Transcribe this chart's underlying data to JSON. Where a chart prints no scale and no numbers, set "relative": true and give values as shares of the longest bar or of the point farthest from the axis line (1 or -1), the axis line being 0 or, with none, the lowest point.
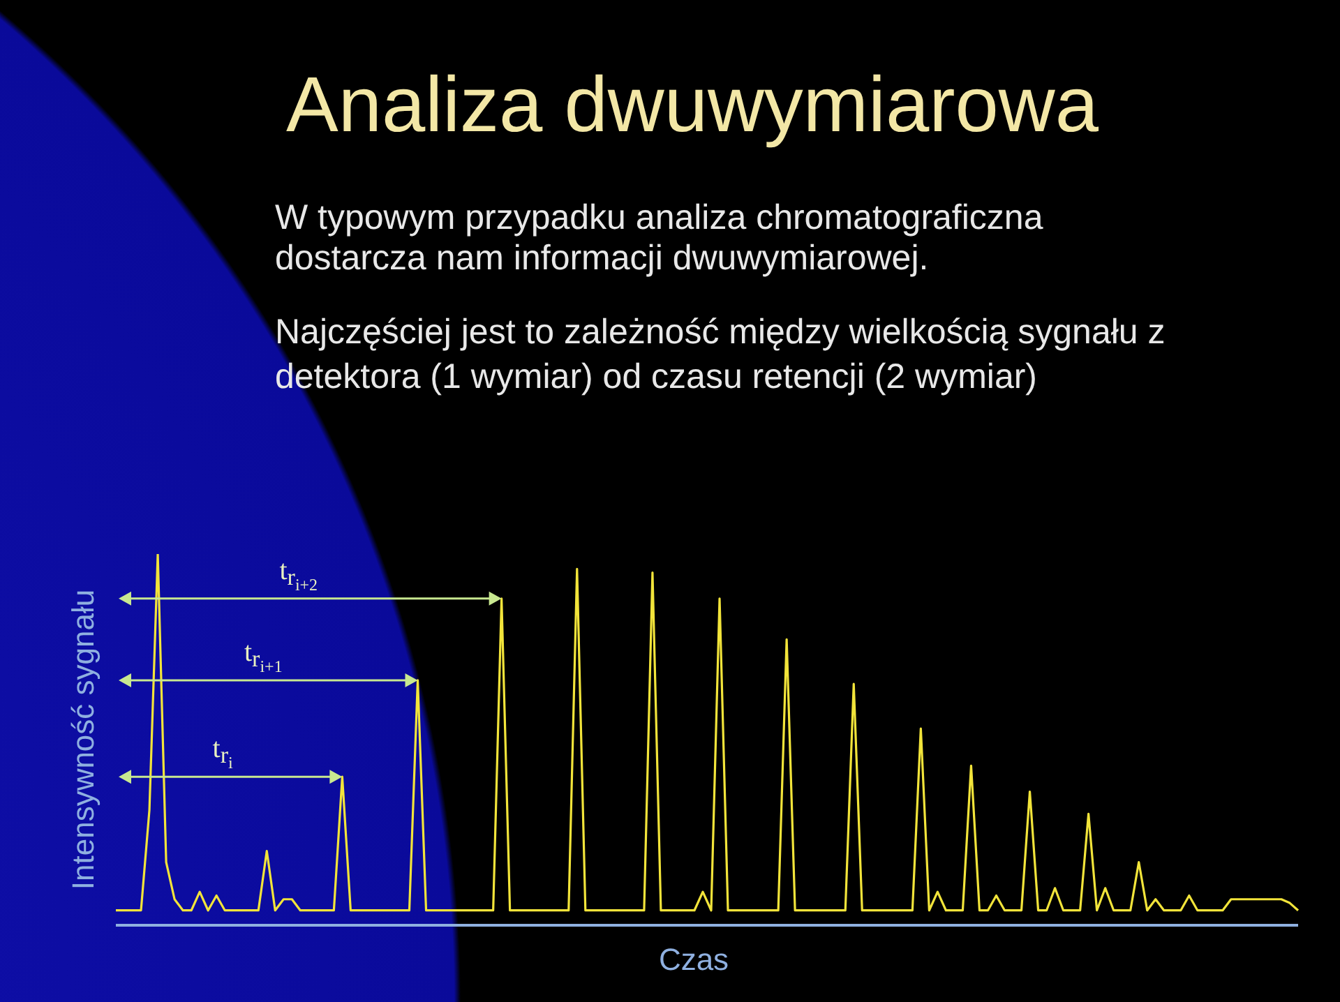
{
  "chart_data": {
    "type": "line",
    "title": "Analiza dwuwymiarowa",
    "subtitle": "W typowym przypadku analiza chromatograficzna dostarcza nam informacji dwuwymiarowej.",
    "xlabel": "Czas",
    "ylabel": "Intensywność sygnału",
    "relative": true,
    "annotations": [
      "Najczęściej jest to zależność między wielkością sygnału z detektora (1 wymiar) od czasu retencji (2 wymiar)",
      "t$_{r}$$_{i}$",
      "t$_{r}$$_{i+1}$",
      "t$_{r}$$_{i+2}$"
    ],
    "categories": [
      null,
      null,
      null,
      null,
      null,
      null,
      null,
      null,
      null,
      null,
      null,
      null,
      null,
      null,
      null,
      null,
      null,
      null,
      null,
      null,
      null,
      null,
      null,
      null,
      null,
      null,
      null,
      null,
      null,
      null,
      null,
      null,
      null,
      null,
      null,
      null,
      null,
      null,
      null,
      null,
      null,
      null,
      null,
      null,
      null,
      null,
      null,
      null,
      null,
      null,
      null,
      null,
      null,
      null,
      null,
      null,
      null,
      null,
      null,
      null,
      null,
      null,
      null,
      null,
      null,
      null,
      null,
      null,
      null,
      null,
      null,
      null,
      null,
      null,
      null,
      null,
      null,
      null,
      null,
      null,
      null,
      null,
      null,
      null,
      null,
      null,
      null,
      null,
      null,
      null,
      null,
      null,
      null,
      null,
      null,
      null,
      null,
      null,
      null,
      null,
      null,
      null,
      null,
      null,
      null,
      null,
      null,
      null,
      null,
      null,
      null,
      null,
      null,
      null,
      null,
      null,
      null,
      null,
      null,
      null,
      null,
      null,
      null,
      null,
      null,
      null,
      null,
      null,
      null,
      null,
      null,
      null,
      null,
      null,
      null,
      null,
      null,
      null,
      null,
      null,
      null,
      null
    ],
    "series": [
      {
        "color": "#f2e43a",
        "values": [
          0.04,
          0.04,
          0.04,
          0.04,
          0.31,
          1,
          0.17,
          0.07,
          0.04,
          0.04,
          0.09,
          0.04,
          0.08,
          0.04,
          0.04,
          0.04,
          0.04,
          0.04,
          0.2,
          0.04,
          0.07,
          0.07,
          0.04,
          0.04,
          0.04,
          0.04,
          0.04,
          0.4,
          0.04,
          0.04,
          0.04,
          0.04,
          0.04,
          0.04,
          0.04,
          0.04,
          0.66,
          0.04,
          0.04,
          0.04,
          0.04,
          0.04,
          0.04,
          0.04,
          0.04,
          0.04,
          0.88,
          0.04,
          0.04,
          0.04,
          0.04,
          0.04,
          0.04,
          0.04,
          0.04,
          0.96,
          0.04,
          0.04,
          0.04,
          0.04,
          0.04,
          0.04,
          0.04,
          0.04,
          0.95,
          0.04,
          0.04,
          0.04,
          0.04,
          0.04,
          0.09,
          0.04,
          0.88,
          0.04,
          0.04,
          0.04,
          0.04,
          0.04,
          0.04,
          0.04,
          0.77,
          0.04,
          0.04,
          0.04,
          0.04,
          0.04,
          0.04,
          0.04,
          0.65,
          0.04,
          0.04,
          0.04,
          0.04,
          0.04,
          0.04,
          0.04,
          0.53,
          0.04,
          0.09,
          0.04,
          0.04,
          0.04,
          0.43,
          0.04,
          0.04,
          0.08,
          0.04,
          0.04,
          0.04,
          0.36,
          0.04,
          0.04,
          0.1,
          0.04,
          0.04,
          0.04,
          0.3,
          0.04,
          0.1,
          0.04,
          0.04,
          0.04,
          0.17,
          0.04,
          0.07,
          0.04,
          0.04,
          0.04,
          0.08,
          0.04,
          0.04,
          0.04,
          0.04,
          0.07,
          0.07,
          0.07,
          0.07,
          0.07,
          0.07,
          0.07,
          0.06,
          0.04
        ]
      }
    ]
  }
}
